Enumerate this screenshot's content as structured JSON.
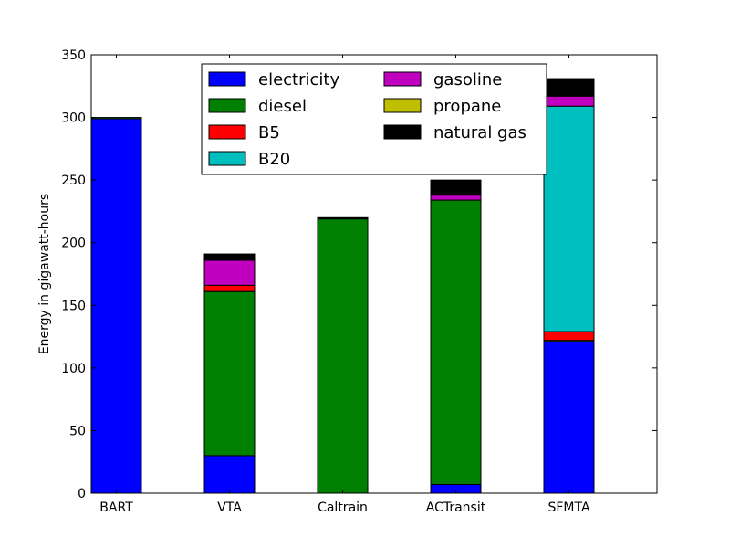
{
  "chart_data": {
    "type": "bar",
    "stacked": true,
    "categories": [
      "BART",
      "VTA",
      "Caltrain",
      "ACTransit",
      "SFMTA"
    ],
    "series": [
      {
        "name": "electricity",
        "color": "#0000ff",
        "values": [
          299,
          30,
          0,
          7,
          121
        ]
      },
      {
        "name": "diesel",
        "color": "#008000",
        "values": [
          1,
          131,
          219,
          227,
          1
        ]
      },
      {
        "name": "B5",
        "color": "#ff0000",
        "values": [
          0,
          5,
          0,
          0,
          7
        ]
      },
      {
        "name": "B20",
        "color": "#00bfbf",
        "values": [
          0,
          0,
          0,
          0,
          180
        ]
      },
      {
        "name": "gasoline",
        "color": "#bf00bf",
        "values": [
          0,
          20,
          0,
          4,
          8
        ]
      },
      {
        "name": "propane",
        "color": "#bfbf00",
        "values": [
          0,
          0,
          0,
          0,
          0
        ]
      },
      {
        "name": "natural gas",
        "color": "#000000",
        "values": [
          0,
          5,
          1,
          12,
          14
        ]
      }
    ],
    "xlabel": "",
    "ylabel": "Energy in gigawatt-hours",
    "ylim": [
      0,
      350
    ],
    "yticks": [
      0,
      50,
      100,
      150,
      200,
      250,
      300,
      350
    ],
    "grid": false,
    "legend": {
      "placement": "top-center",
      "columns": 2
    }
  }
}
